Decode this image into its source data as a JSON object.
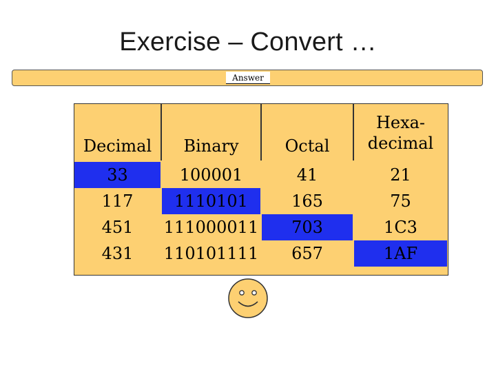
{
  "slide": {
    "title": "Exercise – Convert …",
    "answer_label": "Answer"
  },
  "colors": {
    "table_fill": "#fdd072",
    "highlight": "#1f2fee",
    "border": "#333333"
  },
  "table": {
    "headers": [
      "Decimal",
      "Binary",
      "Octal",
      "Hexa-\ndecimal"
    ],
    "header_hexa_line1": "Hexa-",
    "header_hexa_line2": "decimal",
    "rows": [
      [
        "33",
        "100001",
        "41",
        "21"
      ],
      [
        "117",
        "1110101",
        "165",
        "75"
      ],
      [
        "451",
        "111000011",
        "703",
        "1C3"
      ],
      [
        "431",
        "110101111",
        "657",
        "1AF"
      ]
    ],
    "highlighted_cells": [
      [
        0,
        0
      ],
      [
        1,
        1
      ],
      [
        2,
        2
      ],
      [
        3,
        3
      ]
    ]
  },
  "decoration": {
    "icon": "smiley-face-icon"
  }
}
